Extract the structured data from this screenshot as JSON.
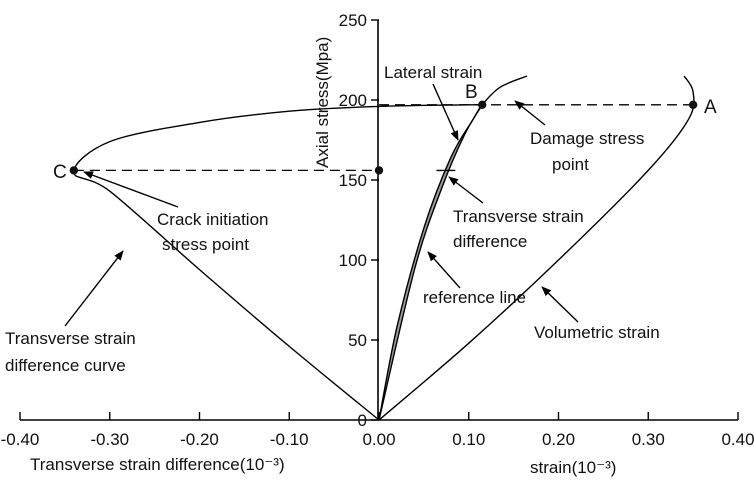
{
  "chart_data": {
    "type": "line",
    "title": "",
    "ylabel": "Axial stress(Mpa)",
    "xlabel_left": "Transverse strain difference(10⁻³)",
    "xlabel_right": "strain(10⁻³)",
    "xlim": [
      -0.4,
      0.4
    ],
    "ylim": [
      0,
      250
    ],
    "x_tick_labels": [
      "-0.40",
      "-0.30",
      "-0.20",
      "-0.10",
      "0.00",
      "0.10",
      "0.20",
      "0.30",
      "0.40"
    ],
    "x_tick_values": [
      -0.4,
      -0.3,
      -0.2,
      -0.1,
      0.0,
      0.1,
      0.2,
      0.3,
      0.4
    ],
    "y_tick_labels": [
      "0",
      "50",
      "100",
      "150",
      "200",
      "250"
    ],
    "y_tick_values": [
      0,
      50,
      100,
      150,
      200,
      250
    ],
    "series": [
      {
        "name": "Transverse strain difference curve",
        "x": [
          0.0,
          -0.1,
          -0.2,
          -0.3,
          -0.34,
          -0.3,
          -0.2,
          -0.1,
          0.0,
          0.1,
          0.115
        ],
        "y": [
          0,
          46,
          94,
          143,
          155,
          174,
          186,
          193,
          196,
          197,
          197
        ]
      },
      {
        "name": "Volumetric strain",
        "x": [
          0.0,
          0.1,
          0.2,
          0.3,
          0.345,
          0.35,
          0.34
        ],
        "y": [
          0,
          48,
          100,
          156,
          188,
          205,
          215
        ]
      },
      {
        "name": "Lateral strain",
        "x": [
          0.0,
          0.02,
          0.05,
          0.08,
          0.105,
          0.115,
          0.135,
          0.165
        ],
        "y": [
          0,
          58,
          120,
          164,
          188,
          197,
          208,
          215
        ]
      },
      {
        "name": "reference line",
        "x": [
          0.0,
          0.04,
          0.07,
          0.095,
          0.115
        ],
        "y": [
          0,
          95,
          145,
          178,
          197
        ]
      }
    ],
    "points": [
      {
        "label": "A",
        "x": 0.35,
        "y": 197
      },
      {
        "label": "B",
        "x": 0.115,
        "y": 197
      },
      {
        "label": "C",
        "x": -0.34,
        "y": 156
      },
      {
        "label": "",
        "x": 0.0,
        "y": 156
      }
    ],
    "annotations": {
      "lateral_strain": "Lateral strain",
      "damage_stress_1": "Damage stress",
      "damage_stress_2": "point",
      "crack_initiation_1": "Crack initiation",
      "crack_initiation_2": "stress point",
      "transverse_diff_1": "Transverse strain",
      "transverse_diff_2": "difference",
      "reference_line": "reference line",
      "volumetric_strain": "Volumetric strain",
      "tsd_curve_1": "Transverse strain",
      "tsd_curve_2": "difference curve"
    },
    "grid": false
  }
}
